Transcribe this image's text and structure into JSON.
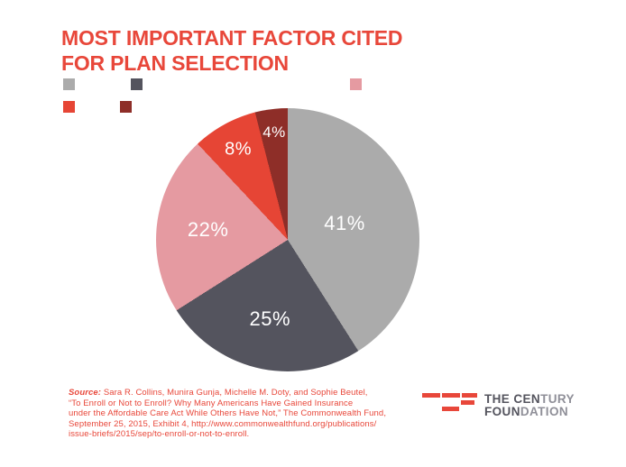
{
  "header": {
    "title_line1": "MOST IMPORTANT FACTOR CITED",
    "title_line2": "FOR PLAN SELECTION"
  },
  "theme": {
    "accent": "#E8473A",
    "brand_text_strong": "#54545E",
    "brand_text_light": "#8F8F98",
    "pie_label_color": "#FFFFFF",
    "background": "#FFFFFF"
  },
  "chart_data": {
    "type": "pie",
    "title": "MOST IMPORTANT FACTOR CITED FOR PLAN SELECTION",
    "slices": [
      {
        "label": "41%",
        "value": 41,
        "color": "#ABABAB"
      },
      {
        "label": "25%",
        "value": 25,
        "color": "#54545E"
      },
      {
        "label": "22%",
        "value": 22,
        "color": "#E59AA1"
      },
      {
        "label": "8%",
        "value": 8,
        "color": "#E64535"
      },
      {
        "label": "4%",
        "value": 4,
        "color": "#8E2E28"
      }
    ],
    "start_angle_deg": 0,
    "direction": "clockwise",
    "legend_position": "top-left",
    "legend_labels_visible": false,
    "label_radius_fraction": [
      0.45,
      0.62,
      0.61,
      0.78,
      0.82
    ],
    "label_font_px": [
      22,
      22,
      22,
      20,
      17
    ]
  },
  "source": {
    "prefix": "Source:",
    "line1_rest": " Sara R. Collins, Munira Gunja, Michelle M. Doty, and Sophie Beutel,",
    "line2": "“To Enroll or Not to Enroll? Why Many Americans Have Gained Insurance",
    "line3": "under the Affordable Care Act While Others Have Not,” The Commonwealth Fund,",
    "line4": "September 25, 2015, Exhibit 4, http://www.commonwealthfund.org/publications/",
    "line5": "issue-briefs/2015/sep/to-enroll-or-not-to-enroll."
  },
  "brand": {
    "line1_strong": "THE CEN",
    "line1_light": "TURY",
    "line2_strong": "FOUN",
    "line2_light": "DATION"
  }
}
